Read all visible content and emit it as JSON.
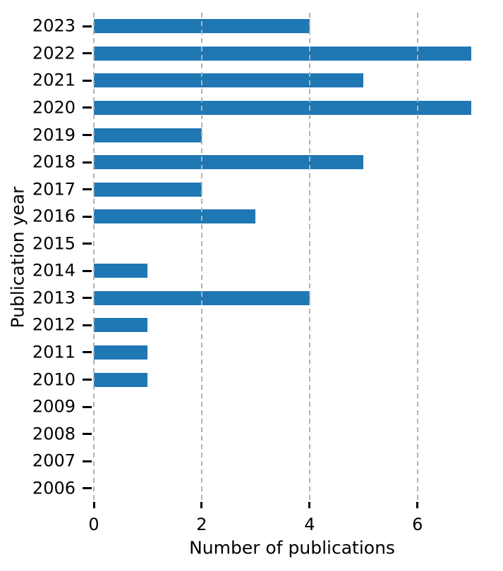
{
  "chart_data": {
    "type": "bar",
    "orientation": "horizontal",
    "title": "",
    "xlabel": "Number of publications",
    "ylabel": "Publication year",
    "categories": [
      "2023",
      "2022",
      "2021",
      "2020",
      "2019",
      "2018",
      "2017",
      "2016",
      "2015",
      "2014",
      "2013",
      "2012",
      "2011",
      "2010",
      "2009",
      "2008",
      "2007",
      "2006"
    ],
    "values": [
      4,
      7,
      5,
      7,
      2,
      5,
      2,
      3,
      0,
      1,
      4,
      1,
      1,
      1,
      0,
      0,
      0,
      0
    ],
    "xticks": [
      0,
      2,
      4,
      6
    ],
    "xtick_labels": [
      "0",
      "2",
      "4",
      "6"
    ],
    "xlim": [
      0,
      7.35
    ],
    "grid": "vertical dashed gridlines at x ticks, drawn over bars",
    "legend_position": "none",
    "colors": {
      "bar": "#1f77b4",
      "grid": "#b3b3b3",
      "tick": "#000000",
      "text": "#000000",
      "background": "#ffffff"
    }
  }
}
